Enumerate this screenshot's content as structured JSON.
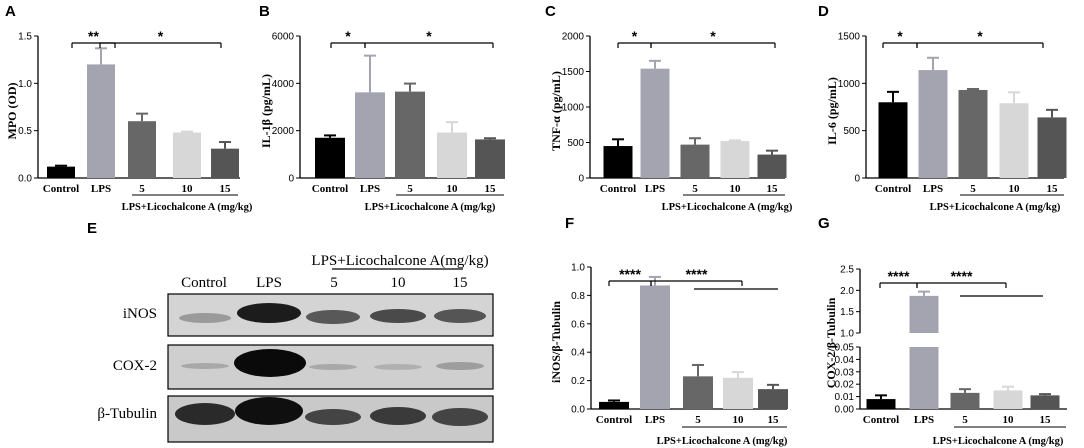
{
  "figure": {
    "panels": [
      {
        "id": "A",
        "letter": "A",
        "ylabel": "MPO (OD)",
        "ylim": [
          0,
          1.5
        ],
        "ticks": [
          "0.0",
          "0.5",
          "1.0",
          "1.5"
        ],
        "tick_values": [
          0,
          0.5,
          1.0,
          1.5
        ]
      },
      {
        "id": "B",
        "letter": "B",
        "ylabel": "IL-1β (pg/mL)",
        "ylim": [
          0,
          6000
        ],
        "ticks": [
          "0",
          "2000",
          "4000",
          "6000"
        ],
        "tick_values": [
          0,
          2000,
          4000,
          6000
        ]
      },
      {
        "id": "C",
        "letter": "C",
        "ylabel": "TNF-α (pg/mL)",
        "ylim": [
          0,
          2000
        ],
        "ticks": [
          "0",
          "500",
          "1000",
          "1500",
          "2000"
        ],
        "tick_values": [
          0,
          500,
          1000,
          1500,
          2000
        ]
      },
      {
        "id": "D",
        "letter": "D",
        "ylabel": "IL-6 (pg/mL)",
        "ylim": [
          0,
          1500
        ],
        "ticks": [
          "0",
          "500",
          "1000",
          "1500"
        ],
        "tick_values": [
          0,
          500,
          1000,
          1500
        ]
      },
      {
        "id": "F",
        "letter": "F",
        "ylabel": "iNOS/β-Tubulin",
        "ylim": [
          0,
          1.0
        ],
        "ticks": [
          "0.0",
          "0.2",
          "0.4",
          "0.6",
          "0.8",
          "1.0"
        ],
        "tick_values": [
          0,
          0.2,
          0.4,
          0.6,
          0.8,
          1.0
        ]
      },
      {
        "id": "G",
        "letter": "G",
        "ylabel": "COX-2/β-Tubulin",
        "ylim_lower": [
          0,
          0.05
        ],
        "ylim_upper": [
          1.0,
          2.5
        ],
        "ticks_lower": [
          "0.00",
          "0.01",
          "0.02",
          "0.03",
          "0.04",
          "0.05"
        ],
        "ticks_lower_values": [
          0,
          0.01,
          0.02,
          0.03,
          0.04,
          0.05
        ],
        "ticks_upper": [
          "1.0",
          "1.5",
          "2.0",
          "2.5"
        ],
        "ticks_upper_values": [
          1.0,
          1.5,
          2.0,
          2.5
        ]
      }
    ],
    "categories": [
      "Control",
      "LPS",
      "5",
      "10",
      "15"
    ],
    "group_label": "LPS+Licochalcone A (mg/kg)",
    "significance": {
      "A": [
        "**",
        "*"
      ],
      "B": [
        "*",
        "*"
      ],
      "C": [
        "*",
        "*"
      ],
      "D": [
        "*",
        "*"
      ],
      "F": [
        "****",
        "****"
      ],
      "G": [
        "****",
        "****"
      ]
    },
    "colors": [
      "#000000",
      "#a4a4b0",
      "#676767",
      "#d7d7d7",
      "#555555"
    ]
  },
  "blot": {
    "letter": "E",
    "header": "LPS+Licochalcone A(mg/kg)",
    "lanes": [
      "Control",
      "LPS",
      "5",
      "10",
      "15"
    ],
    "rows": [
      "iNOS",
      "COX-2",
      "β-Tubulin"
    ]
  },
  "chart_data": [
    {
      "type": "bar",
      "panel": "A",
      "categories": [
        "Control",
        "LPS",
        "5",
        "10",
        "15"
      ],
      "ylabel": "MPO (OD)",
      "xlabel": "LPS+Licochalcone A (mg/kg)",
      "ylim": [
        0,
        1.5
      ],
      "series": [
        {
          "values": [
            0.12,
            1.2,
            0.6,
            0.48,
            0.31
          ],
          "errors": [
            0.01,
            0.17,
            0.08,
            0.01,
            0.07
          ]
        }
      ]
    },
    {
      "type": "bar",
      "panel": "B",
      "categories": [
        "Control",
        "LPS",
        "5",
        "10",
        "15"
      ],
      "ylabel": "IL-1β (pg/mL)",
      "xlabel": "LPS+Licochalcone A (mg/kg)",
      "ylim": [
        0,
        6000
      ],
      "series": [
        {
          "values": [
            1700,
            3620,
            3650,
            1920,
            1630
          ],
          "errors": [
            100,
            1550,
            340,
            440,
            50
          ]
        }
      ]
    },
    {
      "type": "bar",
      "panel": "C",
      "categories": [
        "Control",
        "LPS",
        "5",
        "10",
        "15"
      ],
      "ylabel": "TNF-α (pg/mL)",
      "xlabel": "LPS+Licochalcone A (mg/kg)",
      "ylim": [
        0,
        2000
      ],
      "series": [
        {
          "values": [
            450,
            1540,
            470,
            520,
            330
          ],
          "errors": [
            95,
            110,
            90,
            10,
            55
          ]
        }
      ]
    },
    {
      "type": "bar",
      "panel": "D",
      "categories": [
        "Control",
        "LPS",
        "5",
        "10",
        "15"
      ],
      "ylabel": "IL-6 (pg/mL)",
      "xlabel": "LPS+Licochalcone A (mg/kg)",
      "ylim": [
        0,
        1500
      ],
      "series": [
        {
          "values": [
            800,
            1140,
            930,
            790,
            640
          ],
          "errors": [
            110,
            130,
            10,
            115,
            80
          ]
        }
      ]
    },
    {
      "type": "bar",
      "panel": "F",
      "categories": [
        "Control",
        "LPS",
        "5",
        "10",
        "15"
      ],
      "ylabel": "iNOS/β-Tubulin",
      "xlabel": "LPS+Licochalcone A (mg/kg)",
      "ylim": [
        0,
        1.0
      ],
      "series": [
        {
          "values": [
            0.05,
            0.87,
            0.23,
            0.22,
            0.14
          ],
          "errors": [
            0.01,
            0.06,
            0.08,
            0.04,
            0.03
          ]
        }
      ]
    },
    {
      "type": "bar",
      "panel": "G",
      "categories": [
        "Control",
        "LPS",
        "5",
        "10",
        "15"
      ],
      "ylabel": "COX-2/β-Tubulin",
      "xlabel": "LPS+Licochalcone A (mg/kg)",
      "y_axis_break": [
        0.05,
        1.0
      ],
      "series": [
        {
          "values": [
            0.008,
            1.87,
            0.013,
            0.015,
            0.011
          ],
          "errors": [
            0.003,
            0.1,
            0.003,
            0.003,
            0.001
          ]
        }
      ]
    }
  ]
}
